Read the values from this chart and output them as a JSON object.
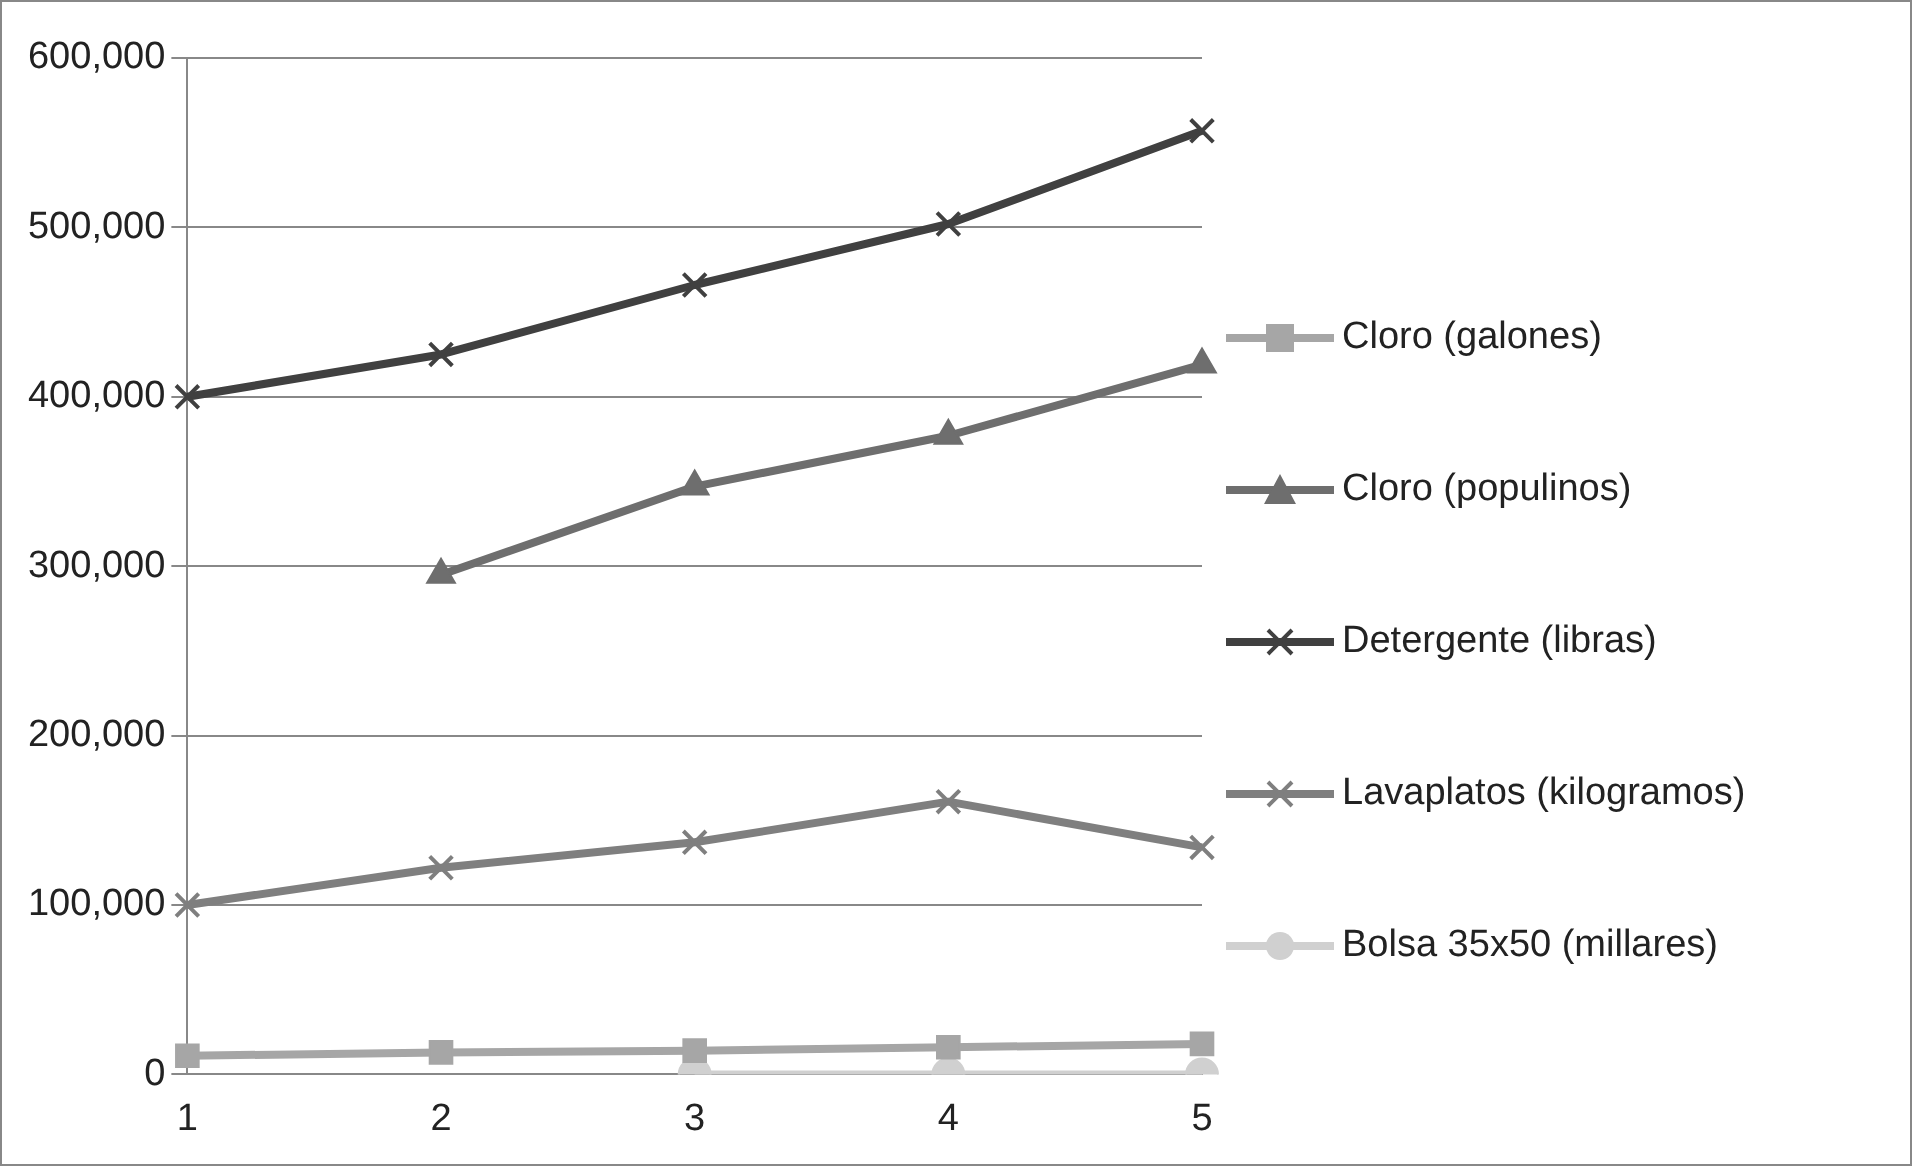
{
  "chart_data": {
    "type": "line",
    "categories": [
      "1",
      "2",
      "3",
      "4",
      "5"
    ],
    "ylim": [
      0,
      600000
    ],
    "yticks": [
      0,
      {
        "value": 100000,
        "label": "100,000"
      },
      {
        "value": 200000,
        "label": "200,000"
      },
      {
        "value": 300000,
        "label": "300,000"
      },
      {
        "value": 400000,
        "label": "400,000"
      },
      {
        "value": 500000,
        "label": "500,000"
      },
      {
        "value": 600000,
        "label": "600,000"
      }
    ],
    "grid": "y",
    "legend": "right",
    "series": [
      {
        "name": "Cloro (galones)",
        "color": "#a6a6a6",
        "marker": "square",
        "values": [
          11000,
          13000,
          14000,
          16000,
          18000
        ]
      },
      {
        "name": "Cloro (populinos)",
        "color": "#6e6e6e",
        "marker": "triangle",
        "values": [
          null,
          295000,
          347000,
          377000,
          419000
        ]
      },
      {
        "name": "Detergente (libras)",
        "color": "#404040",
        "marker": "cross",
        "values": [
          400000,
          425000,
          466000,
          502000,
          557000
        ]
      },
      {
        "name": "Lavaplatos (kilogramos)",
        "color": "#7f7f7f",
        "marker": "cross",
        "values": [
          100000,
          122000,
          137000,
          161000,
          134000
        ]
      },
      {
        "name": "Bolsa 35x50 (millares)",
        "color": "#d0d0d0",
        "marker": "circle",
        "values": [
          null,
          null,
          0,
          0,
          0
        ]
      }
    ]
  }
}
